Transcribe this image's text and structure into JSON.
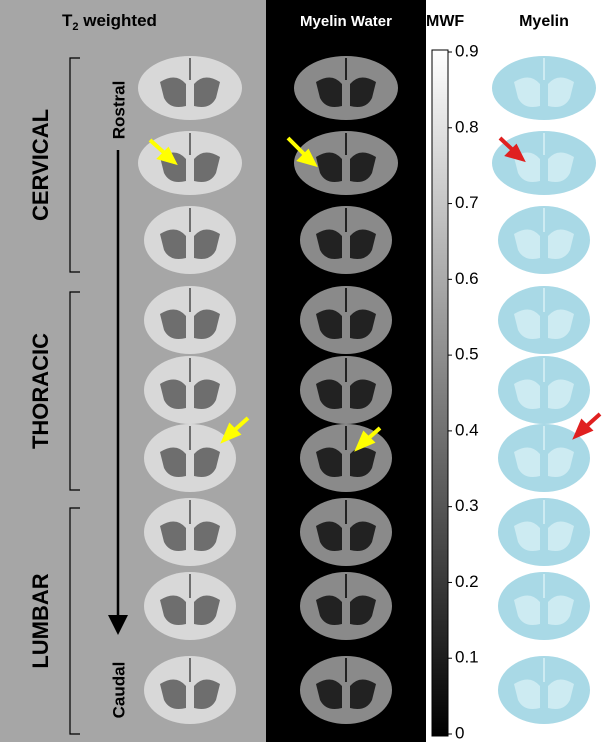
{
  "header": {
    "t2_label": {
      "main": "T",
      "sub": "2",
      "rest": " weighted"
    },
    "myelin_water": "Myelin Water",
    "mwf": "MWF",
    "myelin": "Myelin"
  },
  "regions": [
    "CERVICAL",
    "THORACIC",
    "LUMBAR"
  ],
  "direction": {
    "top": "Rostral",
    "bottom": "Caudal"
  },
  "colorbar": {
    "range": [
      0,
      0.9
    ],
    "ticks": [
      0,
      0.1,
      0.2,
      0.3,
      0.4,
      0.5,
      0.6,
      0.7,
      0.8,
      0.9
    ]
  }
}
